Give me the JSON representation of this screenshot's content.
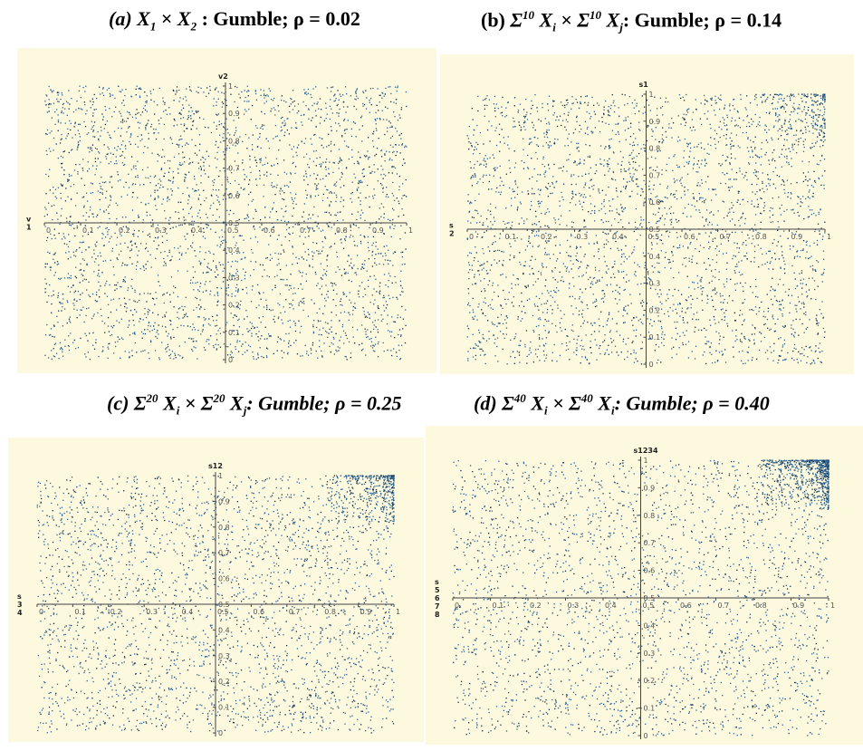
{
  "captions": {
    "a": {
      "prefix": "(a) ",
      "math": "X",
      "s1": "1",
      "times": " × ",
      "math2": "X",
      "s2": "2",
      "rest": " : Gumble; ",
      "rho": "ρ = 0.02"
    },
    "b": {
      "prefix": "(b) ",
      "sig": "Σ",
      "sup1": "10",
      "x1": " X",
      "sub1": "i",
      "times": " × ",
      "sig2": "Σ",
      "sup2": "10",
      "x2": " X",
      "sub2": "j",
      "rest": ": Gumble; ",
      "rho": "ρ = 0.14"
    },
    "c": {
      "prefix": "(c) ",
      "sig": "Σ",
      "sup1": "20",
      "x1": " X",
      "sub1": "i",
      "times": " × ",
      "sig2": "Σ",
      "sup2": "20",
      "x2": " X",
      "sub2": "j",
      "rest": ": Gumble; ",
      "rho": "ρ = 0.25"
    },
    "d": {
      "prefix": "(d) ",
      "sig": "Σ",
      "sup1": "40",
      "x1": " X",
      "sub1": "i",
      "times": " × ",
      "sig2": "Σ",
      "sup2": "40",
      "x2": " X",
      "sub2": "i",
      "rest": ": Gumble; ",
      "rho": "ρ = 0.40"
    }
  },
  "colors": {
    "background": "#fdf9df",
    "point": "#2a6493",
    "point_dark": "#0e2d4d",
    "axis": "#444444"
  },
  "chart_data": [
    {
      "id": "a",
      "type": "scatter",
      "xlabel": "v 1",
      "ylabel": "v2",
      "xlim": [
        0,
        1
      ],
      "ylim": [
        0,
        1
      ],
      "rho": 0.02,
      "x_ticks": [
        "0",
        "0.1",
        "0.2",
        "0.3",
        "0.4",
        "0.5",
        "0.6",
        "0.7",
        "0.8",
        "0.9",
        "1"
      ],
      "y_ticks": [
        "0",
        "0.1",
        "0.2",
        "0.3",
        "0.4",
        "0.5",
        "0.6",
        "0.7",
        "0.8",
        "0.9",
        "1"
      ],
      "ylabel_lines": [
        "v2"
      ],
      "xlabel_lines": [
        "v",
        "1"
      ],
      "n_points": 3200,
      "upper_corner_density": 0.0
    },
    {
      "id": "b",
      "type": "scatter",
      "xlabel": "s 2",
      "ylabel": "s1",
      "xlim": [
        0,
        1
      ],
      "ylim": [
        0,
        1
      ],
      "rho": 0.14,
      "x_ticks": [
        "0",
        "0.1",
        "0.2",
        "0.3",
        "0.4",
        "0.5",
        "0.6",
        "0.7",
        "0.8",
        "0.9",
        "1"
      ],
      "y_ticks": [
        "0",
        "0.1",
        "0.2",
        "0.3",
        "0.4",
        "0.5",
        "0.6",
        "0.7",
        "0.8",
        "0.9",
        "1"
      ],
      "ylabel_lines": [
        "s1"
      ],
      "xlabel_lines": [
        "s",
        "2"
      ],
      "n_points": 3200,
      "upper_corner_density": 0.06
    },
    {
      "id": "c",
      "type": "scatter",
      "xlabel": "s 3 4",
      "ylabel": "s12",
      "xlim": [
        0,
        1
      ],
      "ylim": [
        0,
        1
      ],
      "rho": 0.25,
      "x_ticks": [
        "0",
        "0.1",
        "0.2",
        "0.3",
        "0.4",
        "0.5",
        "0.6",
        "0.7",
        "0.8",
        "0.9",
        "1"
      ],
      "y_ticks": [
        "0",
        "0.1",
        "0.2",
        "0.3",
        "0.4",
        "0.5",
        "0.6",
        "0.7",
        "0.8",
        "0.9",
        "1"
      ],
      "ylabel_lines": [
        "s12"
      ],
      "xlabel_lines": [
        "s",
        "3",
        "4"
      ],
      "n_points": 3200,
      "upper_corner_density": 0.12
    },
    {
      "id": "d",
      "type": "scatter",
      "xlabel": "s 5 6 7 8",
      "ylabel": "s1234",
      "xlim": [
        0,
        1
      ],
      "ylim": [
        0,
        1
      ],
      "rho": 0.4,
      "x_ticks": [
        "0",
        "0.1",
        "0.2",
        "0.3",
        "0.4",
        "0.5",
        "0.6",
        "0.7",
        "0.8",
        "0.9",
        "1"
      ],
      "y_ticks": [
        "0",
        "0.1",
        "0.2",
        "0.3",
        "0.4",
        "0.5",
        "0.6",
        "0.7",
        "0.8",
        "0.9",
        "1"
      ],
      "ylabel_lines": [
        "s1234"
      ],
      "xlabel_lines": [
        "s",
        "5",
        "6",
        "7",
        "8"
      ],
      "n_points": 3400,
      "upper_corner_density": 0.22
    }
  ]
}
